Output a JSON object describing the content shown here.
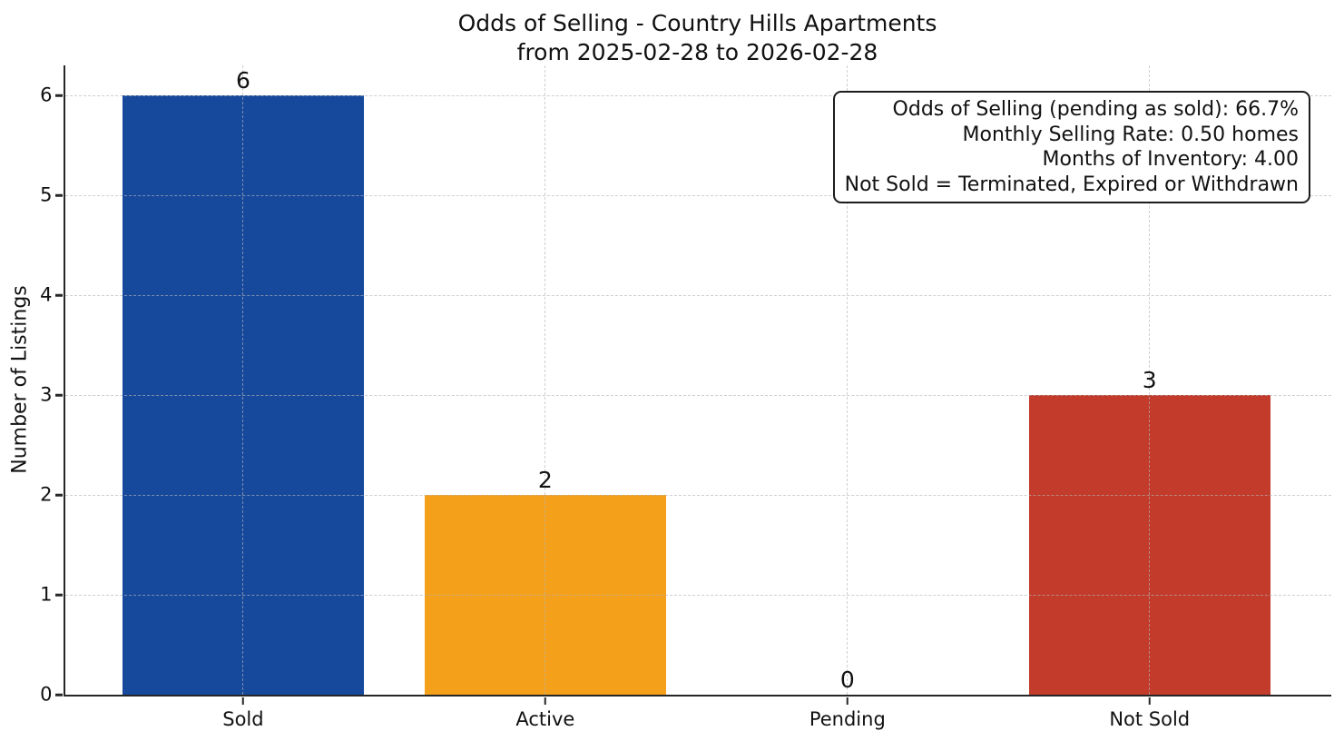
{
  "chart_data": {
    "type": "bar",
    "title": "Odds of Selling - Country Hills Apartments",
    "subtitle": "from 2025-02-28 to 2026-02-28",
    "ylabel": "Number of Listings",
    "xlabel": "",
    "categories": [
      "Sold",
      "Active",
      "Pending",
      "Not Sold"
    ],
    "values": [
      6,
      2,
      0,
      3
    ],
    "value_labels": [
      "6",
      "2",
      "0",
      "3"
    ],
    "bar_colors": [
      "#16489c",
      "#f5a01a",
      null,
      "#c23b2b"
    ],
    "bar_width": 0.8,
    "yticks": [
      0,
      1,
      2,
      3,
      4,
      5,
      6
    ],
    "ylim": [
      0,
      6.3
    ],
    "xlim": [
      -0.59,
      3.6
    ],
    "grid": {
      "visible": true,
      "style": "dashed",
      "color": "#b6b6b6",
      "above_bars": true
    },
    "legend": {
      "visible": false
    },
    "annotation_box": {
      "position": "top-right",
      "text_align": "right",
      "lines": [
        "Odds of Selling (pending as sold): 66.7%",
        "Monthly Selling Rate: 0.50 homes",
        "Months of Inventory: 4.00",
        "Not Sold = Terminated, Expired or Withdrawn"
      ]
    }
  },
  "colors": {
    "background": "#ffffff",
    "spine": "#262626",
    "text": "#111111"
  }
}
